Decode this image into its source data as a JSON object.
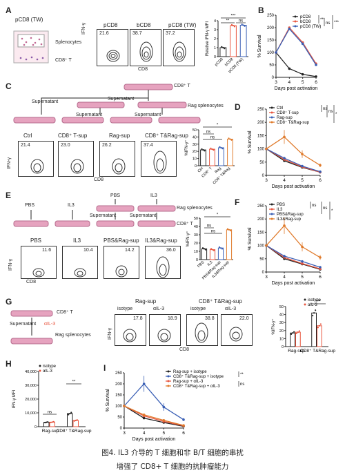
{
  "caption": {
    "line1": "图4. IL3 介导的 T 细胞和非 B/T 细胞的串扰",
    "line2": "增强了 CD8+ T 细胞的抗肿瘤能力"
  },
  "colors": {
    "black": "#222222",
    "red": "#e8563f",
    "blue": "#3a5fb5",
    "orange": "#e07b2c",
    "purple": "#8a5aa8",
    "pink": "#d98cb0",
    "dish": "#e6a3bf"
  },
  "panelA": {
    "letter": "A",
    "schematic_title": "pCD8 (TW)",
    "splenocytes": "Splenocytes",
    "cd8t": "CD8⁺ T",
    "flow_labels": [
      "pCD8",
      "bCD8",
      "pCD8 (TW)"
    ],
    "flow_values": [
      "21.6",
      "38.7",
      "37.2"
    ],
    "xlabel": "CD8",
    "ylabel": "IFN-γ",
    "bar_ylabel": "Relative IFN-γ MFI",
    "bar_ticks": [
      "0",
      "1",
      "2",
      "3",
      "4"
    ],
    "bar_categories": [
      "pCD8",
      "bCD8",
      "pCD8 (TW)"
    ],
    "sig": [
      "***",
      "**",
      "ns"
    ]
  },
  "panelB": {
    "letter": "B",
    "ylabel": "% Survival",
    "xlabel": "Days post activation",
    "legend": [
      "pCD8",
      "bCD8",
      "pCD8 (TW)"
    ],
    "sig": [
      "***",
      "ns",
      "***"
    ],
    "xticks": [
      "3",
      "4",
      "5",
      "6"
    ],
    "yticks": [
      "0",
      "50",
      "100",
      "150",
      "200",
      "250"
    ]
  },
  "panelC": {
    "letter": "C",
    "cd8t": "CD8⁺ T",
    "supernatant": "Supernatant",
    "rag": "Rag splenocytes",
    "flow_labels": [
      "Ctrl",
      "CD8⁺ T-sup",
      "Rag-sup",
      "CD8⁺ T&Rag-sup"
    ],
    "flow_values": [
      "21.4",
      "23.0",
      "26.2",
      "37.4"
    ],
    "xlabel": "CD8",
    "ylabel": "IFN-γ",
    "bar_ylabel": "%IFN-γ⁺",
    "bar_ticks": [
      "0",
      "10",
      "20",
      "30",
      "40",
      "50"
    ],
    "bar_xtitle": "Sup",
    "bar_categories": [
      "Ctrl",
      "CD8⁺ T",
      "Rag",
      "CD8⁺ T&Rag"
    ],
    "sig": [
      "*",
      "ns",
      "ns"
    ]
  },
  "panelD": {
    "letter": "D",
    "ylabel": "% Survival",
    "xlabel": "Days post activation",
    "legend": [
      "Ctrl",
      "CD8⁺ T-sup",
      "Rag-sup",
      "CD8⁺ T&Rag-sup"
    ],
    "sig": [
      "ns",
      "ns",
      "*"
    ],
    "xticks": [
      "3",
      "4",
      "5",
      "6"
    ],
    "yticks": [
      "0",
      "50",
      "100",
      "150",
      "200",
      "250"
    ]
  },
  "panelE": {
    "letter": "E",
    "pbs": "PBS",
    "il3": "IL3",
    "supernatant": "Supernatant",
    "rag": "Rag splenocytes",
    "cd8t": "CD8⁺ T",
    "flow_labels": [
      "PBS",
      "IL3",
      "PBS&Rag-sup",
      "IL3&Rag-sup"
    ],
    "flow_values": [
      "11.6",
      "10.4",
      "14.2",
      "36.0"
    ],
    "xlabel": "CD8",
    "ylabel": "IFN-γ",
    "bar_ylabel": "%IFN-γ⁺",
    "bar_ticks": [
      "0",
      "10",
      "20",
      "30",
      "40",
      "50"
    ],
    "bar_categories": [
      "PBS",
      "IL3",
      "PBS&Rag-sup",
      "IL3&Rag-sup"
    ],
    "sig": [
      "*",
      "ns",
      "ns"
    ]
  },
  "panelF": {
    "letter": "F",
    "ylabel": "% Survival",
    "xlabel": "Days post activation",
    "legend": [
      "PBS",
      "IL3",
      "PBS&Rag-sup",
      "IL3&Rag-sup"
    ],
    "sig": [
      "ns",
      "ns",
      "*"
    ],
    "xticks": [
      "3",
      "4",
      "5",
      "6"
    ],
    "yticks": [
      "0",
      "50",
      "100",
      "150",
      "200",
      "250"
    ]
  },
  "panelG": {
    "letter": "G",
    "cd8t": "CD8⁺ T",
    "supernatant": "Supernatant",
    "ail3": "αIL-3",
    "rag": "Rag splenocytes",
    "group1": "Rag-sup",
    "group2": "CD8⁺ T&Rag-sup",
    "flow_labels": [
      "isotype",
      "αIL-3",
      "isotype",
      "αIL-3"
    ],
    "flow_values": [
      "17.8",
      "18.9",
      "38.8",
      "22.0"
    ],
    "xlabel": "CD8",
    "ylabel": "IFN-γ",
    "bar_ylabel": "%IFN-γ⁺",
    "bar_ticks": [
      "0",
      "10",
      "20",
      "30",
      "40",
      "50"
    ],
    "legend": [
      "isotype",
      "αIL-3"
    ],
    "bar_groups": [
      "Rag-sup",
      "CD8⁺ T&Rag-sup"
    ],
    "sig": [
      "***"
    ]
  },
  "panelH": {
    "letter": "H",
    "ylabel": "IFN-γ MFI",
    "bar_ticks": [
      "0",
      "10,000",
      "20,000",
      "30,000",
      "40,000"
    ],
    "legend": [
      "isotype",
      "αIL-3"
    ],
    "bar_groups": [
      "Rag-sup",
      "CD8⁺ T&Rag-sup"
    ],
    "sig": [
      "ns",
      "**"
    ]
  },
  "panelI": {
    "letter": "I",
    "ylabel": "% Survival",
    "xlabel": "Days post activation",
    "legend": [
      "Rag-sup + isotype",
      "CD8⁺ T&Rag-sup + isotype",
      "Rag-sup + αIL-3",
      "CD8⁺ T&Rag-sup + αIL-3"
    ],
    "sig": [
      "**",
      "ns"
    ],
    "xticks": [
      "3",
      "4",
      "5",
      "6"
    ],
    "yticks": [
      "0",
      "50",
      "100",
      "150",
      "200",
      "250"
    ]
  },
  "chart_data": [
    {
      "panel": "A",
      "type": "bar",
      "categories": [
        "pCD8",
        "bCD8",
        "pCD8 (TW)"
      ],
      "values": [
        1.0,
        3.45,
        3.5
      ],
      "ylim": [
        0,
        4
      ],
      "ylabel": "Relative IFN-γ MFI"
    },
    {
      "panel": "B",
      "type": "line",
      "x": [
        3,
        4,
        5,
        6
      ],
      "xlabel": "Days post activation",
      "ylabel": "% Survival",
      "ylim": [
        0,
        250
      ],
      "series": [
        {
          "name": "pCD8",
          "values": [
            100,
            35,
            12,
            3
          ]
        },
        {
          "name": "bCD8",
          "values": [
            100,
            200,
            140,
            55
          ]
        },
        {
          "name": "pCD8 (TW)",
          "values": [
            100,
            195,
            135,
            50
          ]
        }
      ]
    },
    {
      "panel": "C",
      "type": "bar",
      "categories": [
        "Ctrl",
        "CD8⁺ T",
        "Rag",
        "CD8⁺ T&Rag"
      ],
      "values": [
        22,
        23,
        25,
        37
      ],
      "ylim": [
        0,
        50
      ],
      "ylabel": "%IFN-γ⁺"
    },
    {
      "panel": "D",
      "type": "line",
      "x": [
        3,
        4,
        5,
        6
      ],
      "ylim": [
        0,
        250
      ],
      "xlabel": "Days post activation",
      "ylabel": "% Survival",
      "series": [
        {
          "name": "Ctrl",
          "values": [
            100,
            55,
            30,
            12
          ]
        },
        {
          "name": "CD8⁺ T-sup",
          "values": [
            100,
            60,
            32,
            12
          ]
        },
        {
          "name": "Rag-sup",
          "values": [
            100,
            65,
            35,
            14
          ]
        },
        {
          "name": "CD8⁺ T&Rag-sup",
          "values": [
            100,
            145,
            80,
            38
          ]
        }
      ]
    },
    {
      "panel": "E",
      "type": "bar",
      "categories": [
        "PBS",
        "IL3",
        "PBS&Rag-sup",
        "IL3&Rag-sup"
      ],
      "values": [
        13,
        12,
        14,
        36
      ],
      "ylim": [
        0,
        50
      ],
      "ylabel": "%IFN-γ⁺"
    },
    {
      "panel": "F",
      "type": "line",
      "x": [
        3,
        4,
        5,
        6
      ],
      "ylim": [
        0,
        250
      ],
      "xlabel": "Days post activation",
      "ylabel": "% Survival",
      "series": [
        {
          "name": "PBS",
          "values": [
            100,
            50,
            30,
            10
          ]
        },
        {
          "name": "IL3",
          "values": [
            100,
            55,
            32,
            12
          ]
        },
        {
          "name": "PBS&Rag-sup",
          "values": [
            100,
            60,
            40,
            18
          ]
        },
        {
          "name": "IL3&Rag-sup",
          "values": [
            100,
            175,
            95,
            55
          ]
        }
      ]
    },
    {
      "panel": "G",
      "type": "bar",
      "categories": [
        "Rag-sup",
        "CD8⁺ T&Rag-sup"
      ],
      "ylim": [
        0,
        50
      ],
      "ylabel": "%IFN-γ⁺",
      "series": [
        {
          "name": "isotype",
          "values": [
            17,
            42
          ]
        },
        {
          "name": "αIL-3",
          "values": [
            18,
            26
          ]
        }
      ]
    },
    {
      "panel": "H",
      "type": "bar",
      "categories": [
        "Rag-sup",
        "CD8⁺ T&Rag-sup"
      ],
      "ylim": [
        0,
        40000
      ],
      "ylabel": "IFN-γ MFI",
      "series": [
        {
          "name": "isotype",
          "values": [
            3200,
            9500
          ]
        },
        {
          "name": "αIL-3",
          "values": [
            3300,
            4500
          ]
        }
      ]
    },
    {
      "panel": "I",
      "type": "line",
      "x": [
        3,
        4,
        5,
        6
      ],
      "ylim": [
        0,
        250
      ],
      "xlabel": "Days post activation",
      "ylabel": "% Survival",
      "series": [
        {
          "name": "Rag-sup + isotype",
          "values": [
            100,
            45,
            25,
            8
          ]
        },
        {
          "name": "CD8⁺ T&Rag-sup + isotype",
          "values": [
            100,
            200,
            95,
            38
          ]
        },
        {
          "name": "Rag-sup + αIL-3",
          "values": [
            100,
            55,
            30,
            10
          ]
        },
        {
          "name": "CD8⁺ T&Rag-sup + αIL-3",
          "values": [
            100,
            60,
            35,
            12
          ]
        }
      ]
    }
  ]
}
